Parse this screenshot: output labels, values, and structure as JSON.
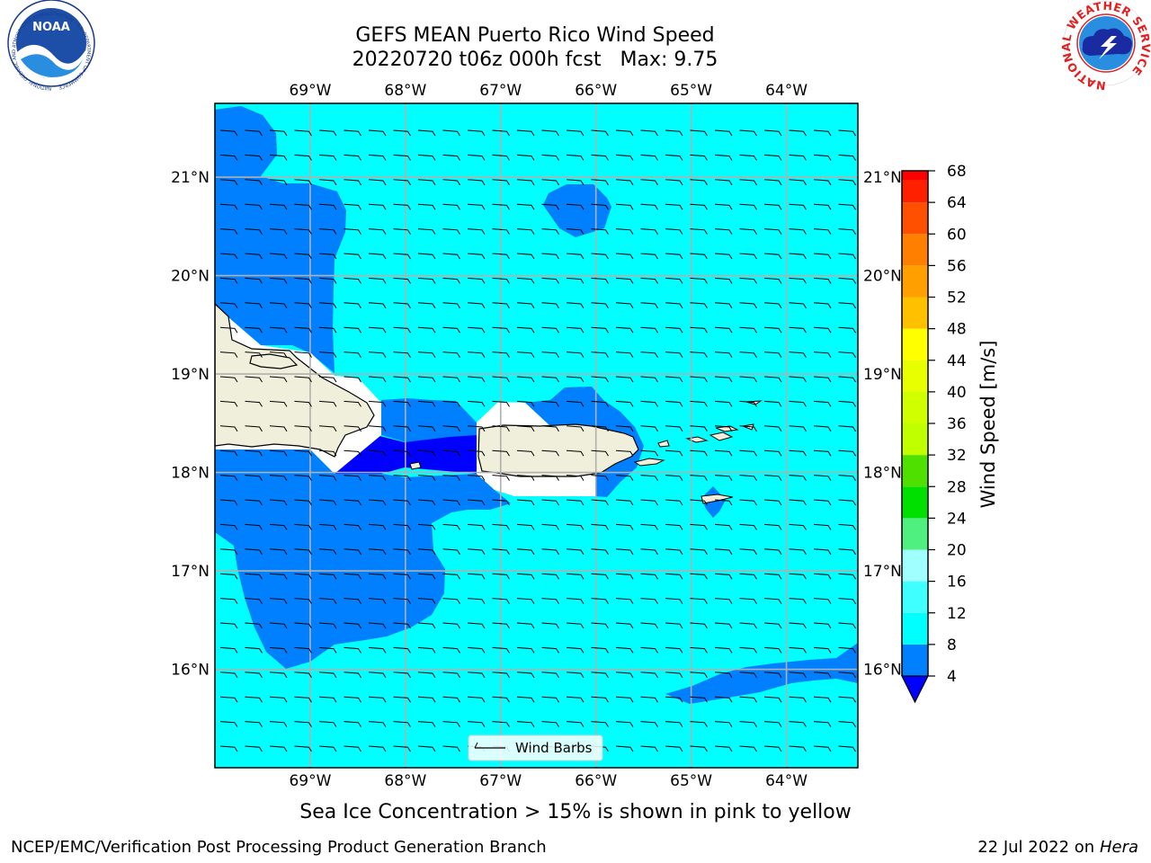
{
  "title": {
    "line1": "GEFS MEAN Puerto Rico Wind Speed",
    "line2": "20220720 t06z 000h fcst   Max: 9.75"
  },
  "subtitle": "Sea Ice Concentration > 15% is shown in pink to yellow",
  "footer": {
    "left": "NCEP/EMC/Verification Post Processing Product Generation Branch",
    "right_date": "22 Jul 2022 on ",
    "right_host": "Hera"
  },
  "logos": {
    "noaa": {
      "text": "NOAA",
      "ring_text": "NATIONAL OCEANIC AND ATMOSPHERIC ADMINISTRATION · U.S. DEPARTMENT OF COMMERCE"
    },
    "nws": {
      "ring_text": "NATIONAL WEATHER SERVICE"
    }
  },
  "map": {
    "lon_range": [
      -70,
      -63.25
    ],
    "lat_range": [
      15,
      21.75
    ],
    "lon_ticks": [
      {
        "value": -69,
        "label": "69°W"
      },
      {
        "value": -68,
        "label": "68°W"
      },
      {
        "value": -67,
        "label": "67°W"
      },
      {
        "value": -66,
        "label": "66°W"
      },
      {
        "value": -65,
        "label": "65°W"
      },
      {
        "value": -64,
        "label": "64°W"
      }
    ],
    "lat_ticks": [
      {
        "value": 21,
        "label": "21°N"
      },
      {
        "value": 20,
        "label": "20°N"
      },
      {
        "value": 19,
        "label": "19°N"
      },
      {
        "value": 18,
        "label": "18°N"
      },
      {
        "value": 17,
        "label": "17°N"
      },
      {
        "value": 16,
        "label": "16°N"
      }
    ],
    "legend_label": "Wind Barbs",
    "background_color": "#00ffff",
    "gridlines": true
  },
  "colorbar": {
    "label": "Wind Speed [m/s]",
    "ticks": [
      "4",
      "8",
      "12",
      "16",
      "20",
      "24",
      "28",
      "32",
      "36",
      "40",
      "44",
      "48",
      "52",
      "56",
      "60",
      "64",
      "68"
    ],
    "bins": [
      {
        "from": 4,
        "to": 8,
        "color": "#0080ff"
      },
      {
        "from": 8,
        "to": 12,
        "color": "#00ffff"
      },
      {
        "from": 12,
        "to": 16,
        "color": "#40ffff"
      },
      {
        "from": 16,
        "to": 20,
        "color": "#a0ffff"
      },
      {
        "from": 20,
        "to": 24,
        "color": "#50f080"
      },
      {
        "from": 24,
        "to": 28,
        "color": "#00e000"
      },
      {
        "from": 28,
        "to": 32,
        "color": "#50e000"
      },
      {
        "from": 32,
        "to": 36,
        "color": "#c0ff00"
      },
      {
        "from": 36,
        "to": 40,
        "color": "#d0ff00"
      },
      {
        "from": 40,
        "to": 44,
        "color": "#e8ff00"
      },
      {
        "from": 44,
        "to": 48,
        "color": "#ffff00"
      },
      {
        "from": 48,
        "to": 52,
        "color": "#ffc000"
      },
      {
        "from": 52,
        "to": 56,
        "color": "#ffa000"
      },
      {
        "from": 56,
        "to": 60,
        "color": "#ff8000"
      },
      {
        "from": 60,
        "to": 64,
        "color": "#ff5000"
      },
      {
        "from": 64,
        "to": 68,
        "color": "#ff2000"
      }
    ],
    "under_color": "#0000ff",
    "over_range_color": "#ff0000"
  }
}
